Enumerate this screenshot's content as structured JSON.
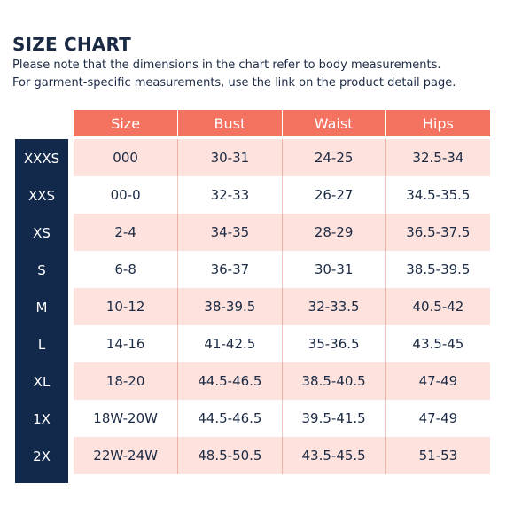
{
  "title": "SIZE CHART",
  "note_line1": "Please note that the dimensions in the chart refer to body measurements.",
  "note_line2": "For garment-specific measurements, use the link on the product detail page.",
  "colors": {
    "header_bg": "#f37260",
    "sidebar_bg": "#13294b",
    "row_pink": "#fde2dd",
    "row_white": "#ffffff",
    "text": "#1b2a44"
  },
  "columns": [
    "Size",
    "Bust",
    "Waist",
    "Hips"
  ],
  "rows": [
    {
      "label": "XXXS",
      "cells": [
        "000",
        "30-31",
        "24-25",
        "32.5-34"
      ]
    },
    {
      "label": "XXS",
      "cells": [
        "00-0",
        "32-33",
        "26-27",
        "34.5-35.5"
      ]
    },
    {
      "label": "XS",
      "cells": [
        "2-4",
        "34-35",
        "28-29",
        "36.5-37.5"
      ]
    },
    {
      "label": "S",
      "cells": [
        "6-8",
        "36-37",
        "30-31",
        "38.5-39.5"
      ]
    },
    {
      "label": "M",
      "cells": [
        "10-12",
        "38-39.5",
        "32-33.5",
        "40.5-42"
      ]
    },
    {
      "label": "L",
      "cells": [
        "14-16",
        "41-42.5",
        "35-36.5",
        "43.5-45"
      ]
    },
    {
      "label": "XL",
      "cells": [
        "18-20",
        "44.5-46.5",
        "38.5-40.5",
        "47-49"
      ]
    },
    {
      "label": "1X",
      "cells": [
        "18W-20W",
        "44.5-46.5",
        "39.5-41.5",
        "47-49"
      ]
    },
    {
      "label": "2X",
      "cells": [
        "22W-24W",
        "48.5-50.5",
        "43.5-45.5",
        "51-53"
      ]
    }
  ]
}
